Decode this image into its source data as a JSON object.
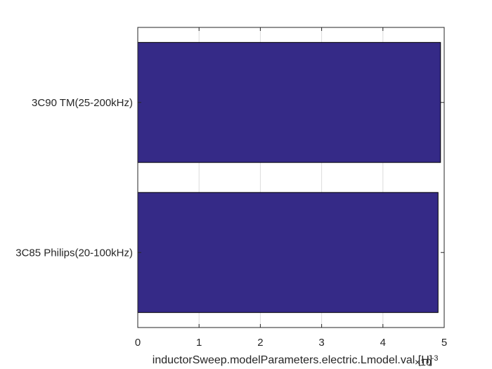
{
  "chart_data": {
    "type": "bar",
    "orientation": "horizontal",
    "categories": [
      "3C85 Philips(20-100kHz)",
      "3C90 TM(25-200kHz)"
    ],
    "values": [
      0.0049,
      0.00494
    ],
    "xlabel": "inductorSweep.modelParameters.electric.Lmodel.val [H]",
    "xlim": [
      0,
      0.005
    ],
    "xticks": [
      0,
      1,
      2,
      3,
      4,
      5
    ],
    "xtick_exponent": "×10",
    "xtick_exponent_power": "-3",
    "grid": true,
    "bar_color": "#352a87"
  }
}
